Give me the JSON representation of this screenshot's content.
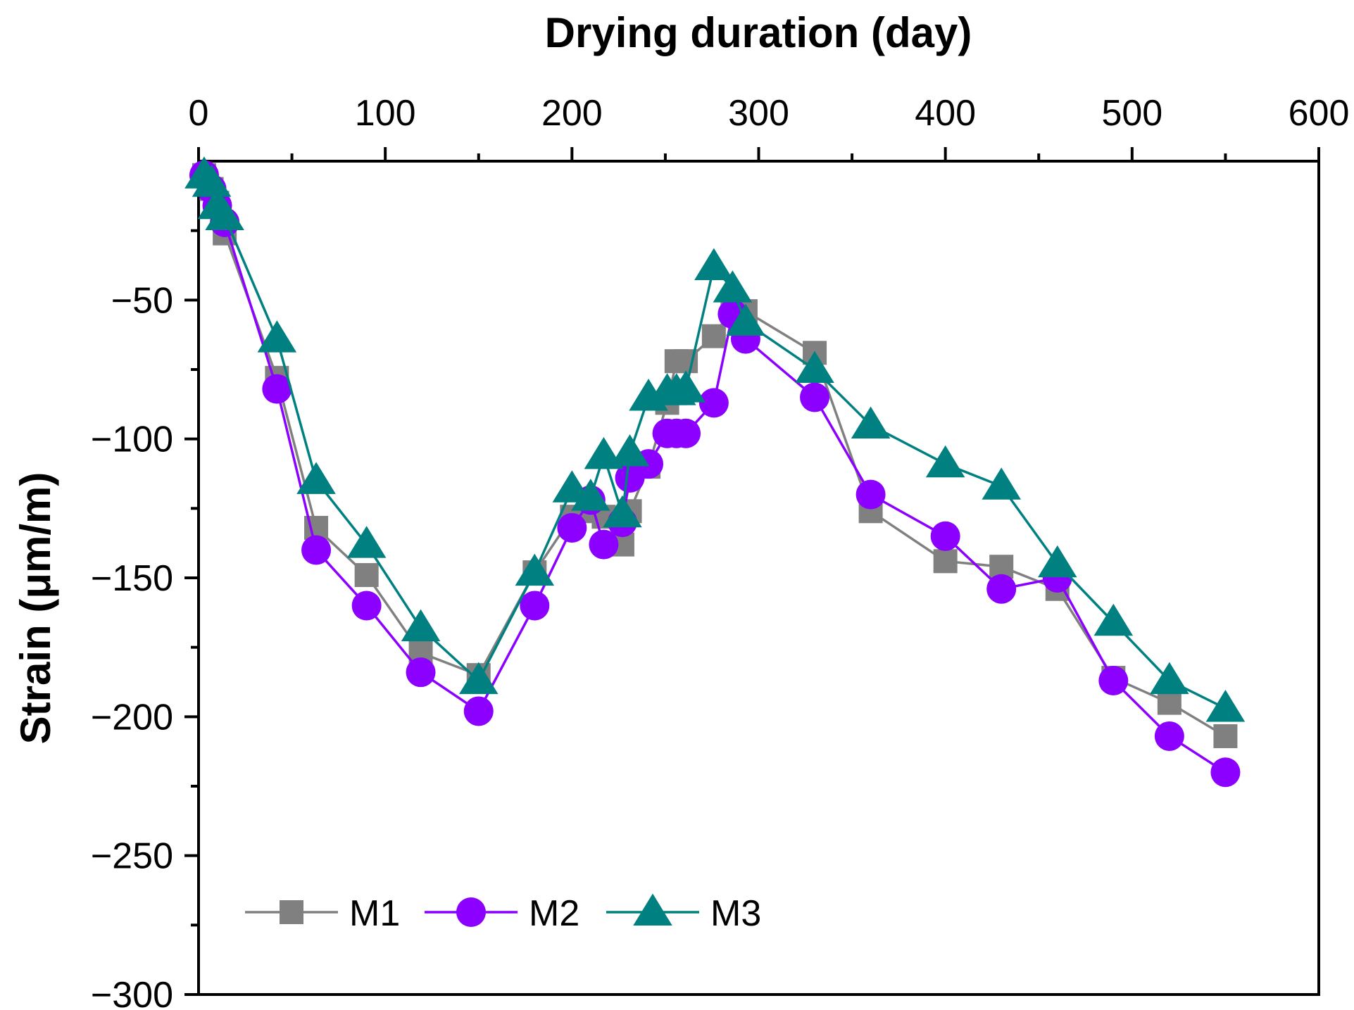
{
  "chart_data": {
    "type": "line",
    "title": "",
    "xlabel": "Drying duration (day)",
    "ylabel": "Strain (μm/m)",
    "xlim": [
      0,
      600
    ],
    "ylim": [
      -300,
      0
    ],
    "x_ticks": [
      0,
      100,
      200,
      300,
      400,
      500,
      600
    ],
    "x_tick_labels": [
      "0",
      "100",
      "200",
      "300",
      "400",
      "500",
      "600"
    ],
    "y_ticks": [
      -50,
      -100,
      -150,
      -200,
      -250,
      -300
    ],
    "y_tick_labels": [
      "−50",
      "−100",
      "−150",
      "−200",
      "−250",
      "−300"
    ],
    "x_axis_position": "top",
    "grid": false,
    "legend_position": "bottom-left",
    "series": [
      {
        "name": "M1",
        "color": "#808080",
        "marker": "square",
        "x": [
          3,
          7,
          10,
          14,
          42,
          63,
          90,
          119,
          150,
          180,
          200,
          210,
          217,
          227,
          231,
          241,
          251,
          256,
          261,
          276,
          286,
          293,
          330,
          360,
          400,
          430,
          460,
          490,
          520,
          550
        ],
        "y": [
          -5,
          -10,
          -15,
          -26,
          -78,
          -132,
          -149,
          -177,
          -185,
          -148,
          -128,
          -126,
          -128,
          -138,
          -126,
          -110,
          -87,
          -72,
          -72,
          -63,
          -53,
          -54,
          -69,
          -126,
          -144,
          -146,
          -154,
          -186,
          -195,
          -207
        ]
      },
      {
        "name": "M2",
        "color": "#8B00FF",
        "marker": "circle",
        "x": [
          3,
          7,
          10,
          14,
          42,
          63,
          90,
          119,
          150,
          180,
          200,
          210,
          217,
          227,
          231,
          241,
          251,
          256,
          261,
          276,
          286,
          293,
          330,
          360,
          400,
          430,
          460,
          490,
          520,
          550
        ],
        "y": [
          -5,
          -10,
          -16,
          -22,
          -82,
          -140,
          -160,
          -184,
          -198,
          -160,
          -132,
          -122,
          -138,
          -130,
          -114,
          -109,
          -98,
          -98,
          -98,
          -87,
          -55,
          -64,
          -85,
          -120,
          -135,
          -154,
          -150,
          -187,
          -207,
          -220
        ]
      },
      {
        "name": "M3",
        "color": "#008080",
        "marker": "triangle",
        "x": [
          3,
          7,
          10,
          14,
          42,
          63,
          90,
          119,
          150,
          180,
          200,
          210,
          217,
          227,
          231,
          241,
          251,
          256,
          261,
          276,
          286,
          293,
          330,
          360,
          400,
          430,
          460,
          490,
          520,
          550
        ],
        "y": [
          -5,
          -8,
          -16,
          -20,
          -64,
          -115,
          -138,
          -168,
          -187,
          -148,
          -118,
          -121,
          -106,
          -127,
          -105,
          -85,
          -83,
          -83,
          -82,
          -38,
          -46,
          -58,
          -75,
          -95,
          -109,
          -117,
          -145,
          -166,
          -187,
          -197
        ]
      }
    ]
  }
}
